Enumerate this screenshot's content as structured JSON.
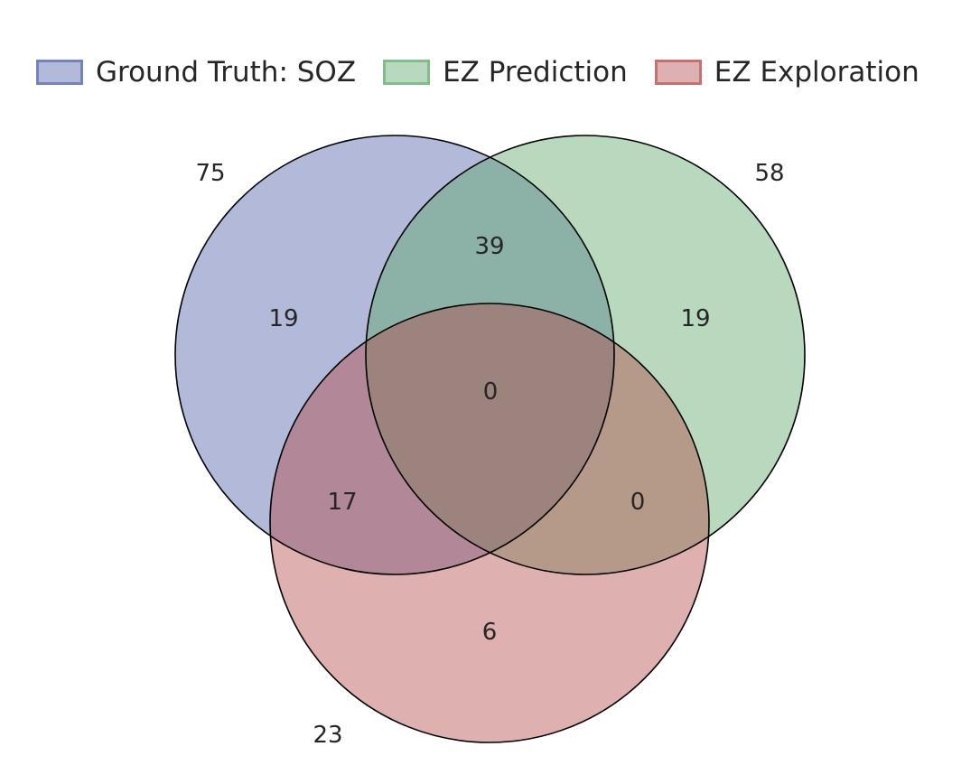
{
  "legend": [
    {
      "label": "Ground Truth: SOZ",
      "color": "#4c5da7"
    },
    {
      "label": "EZ Prediction",
      "color": "#5ba867"
    },
    {
      "label": "EZ Exploration",
      "color": "#b24845"
    }
  ],
  "set_totals": {
    "soz": "75",
    "prediction": "58",
    "exploration": "23"
  },
  "regions": {
    "soz_only": "19",
    "prediction_only": "19",
    "exploration_only": "6",
    "soz_prediction": "39",
    "soz_exploration": "17",
    "prediction_exploration": "0",
    "all_three": "0"
  }
}
